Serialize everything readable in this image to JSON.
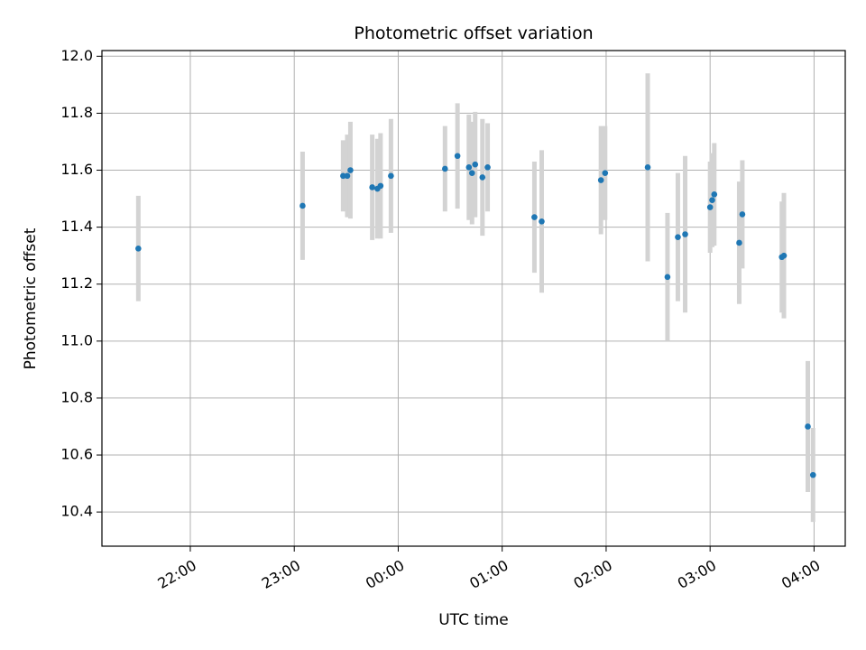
{
  "chart_data": {
    "type": "scatter",
    "title": "Photometric offset variation",
    "xlabel": "UTC time",
    "ylabel": "Photometric offset",
    "x_unit": "UTC hours (continuous from 21:00 = 21.0; values > 24 are after midnight)",
    "xlim": [
      21.15,
      28.3
    ],
    "ylim": [
      10.28,
      12.02
    ],
    "x_ticks": [
      {
        "value": 22,
        "label": "22:00"
      },
      {
        "value": 23,
        "label": "23:00"
      },
      {
        "value": 24,
        "label": "00:00"
      },
      {
        "value": 25,
        "label": "01:00"
      },
      {
        "value": 26,
        "label": "02:00"
      },
      {
        "value": 27,
        "label": "03:00"
      },
      {
        "value": 28,
        "label": "04:00"
      }
    ],
    "y_ticks": [
      {
        "value": 10.4,
        "label": "10.4"
      },
      {
        "value": 10.6,
        "label": "10.6"
      },
      {
        "value": 10.8,
        "label": "10.8"
      },
      {
        "value": 11.0,
        "label": "11.0"
      },
      {
        "value": 11.2,
        "label": "11.2"
      },
      {
        "value": 11.4,
        "label": "11.4"
      },
      {
        "value": 11.6,
        "label": "11.6"
      },
      {
        "value": 11.8,
        "label": "11.8"
      },
      {
        "value": 12.0,
        "label": "12.0"
      }
    ],
    "grid": true,
    "point_color": "#1f77b4",
    "errorbar_color": "#d3d3d3",
    "points": [
      {
        "x": 21.5,
        "y": 11.325,
        "err": 0.185
      },
      {
        "x": 23.08,
        "y": 11.475,
        "err": 0.19
      },
      {
        "x": 23.47,
        "y": 11.58,
        "err": 0.125
      },
      {
        "x": 23.51,
        "y": 11.58,
        "err": 0.145
      },
      {
        "x": 23.54,
        "y": 11.6,
        "err": 0.17
      },
      {
        "x": 23.75,
        "y": 11.54,
        "err": 0.185
      },
      {
        "x": 23.8,
        "y": 11.535,
        "err": 0.175
      },
      {
        "x": 23.83,
        "y": 11.545,
        "err": 0.185
      },
      {
        "x": 23.93,
        "y": 11.58,
        "err": 0.2
      },
      {
        "x": 24.45,
        "y": 11.605,
        "err": 0.15
      },
      {
        "x": 24.57,
        "y": 11.65,
        "err": 0.185
      },
      {
        "x": 24.68,
        "y": 11.61,
        "err": 0.185
      },
      {
        "x": 24.71,
        "y": 11.59,
        "err": 0.18
      },
      {
        "x": 24.74,
        "y": 11.62,
        "err": 0.185
      },
      {
        "x": 24.81,
        "y": 11.575,
        "err": 0.205
      },
      {
        "x": 24.86,
        "y": 11.61,
        "err": 0.155
      },
      {
        "x": 25.31,
        "y": 11.435,
        "err": 0.195
      },
      {
        "x": 25.38,
        "y": 11.42,
        "err": 0.25
      },
      {
        "x": 25.95,
        "y": 11.565,
        "err": 0.19
      },
      {
        "x": 25.99,
        "y": 11.59,
        "err": 0.165
      },
      {
        "x": 26.4,
        "y": 11.61,
        "err": 0.33
      },
      {
        "x": 26.59,
        "y": 11.225,
        "err": 0.225
      },
      {
        "x": 26.69,
        "y": 11.365,
        "err": 0.225
      },
      {
        "x": 26.76,
        "y": 11.375,
        "err": 0.275
      },
      {
        "x": 27.0,
        "y": 11.47,
        "err": 0.16
      },
      {
        "x": 27.02,
        "y": 11.495,
        "err": 0.165
      },
      {
        "x": 27.04,
        "y": 11.515,
        "err": 0.18
      },
      {
        "x": 27.28,
        "y": 11.345,
        "err": 0.215
      },
      {
        "x": 27.31,
        "y": 11.445,
        "err": 0.19
      },
      {
        "x": 27.69,
        "y": 11.295,
        "err": 0.195
      },
      {
        "x": 27.71,
        "y": 11.3,
        "err": 0.22
      },
      {
        "x": 27.94,
        "y": 10.7,
        "err": 0.23
      },
      {
        "x": 27.99,
        "y": 10.53,
        "err": 0.165
      }
    ]
  }
}
